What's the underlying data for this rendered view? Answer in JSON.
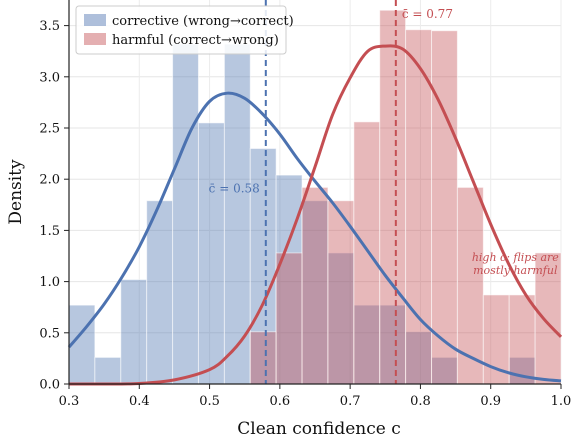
{
  "chart_data": {
    "type": "histogram",
    "title": "",
    "xlabel": "Clean confidence c",
    "ylabel": "Density",
    "xlim": [
      0.3,
      1.0
    ],
    "ylim": [
      0.0,
      3.75
    ],
    "xticks": [
      "0.3",
      "0.4",
      "0.5",
      "0.6",
      "0.7",
      "0.8",
      "0.9",
      "1.0"
    ],
    "yticks": [
      "0.0",
      "0.5",
      "1.0",
      "1.5",
      "2.0",
      "2.5",
      "3.0",
      "3.5"
    ],
    "grid": true,
    "legend_position": "top-left",
    "bin_edges": [
      0.3,
      0.3368,
      0.3737,
      0.4105,
      0.4474,
      0.4842,
      0.5211,
      0.5579,
      0.5947,
      0.6316,
      0.6684,
      0.7053,
      0.7421,
      0.7789,
      0.8158,
      0.8526,
      0.8895,
      0.9263,
      0.9632,
      1.0
    ],
    "series": [
      {
        "name": "corrective (wrong→correct)",
        "color": "#4c72b0",
        "bar_alpha": 0.4,
        "values": [
          0.77,
          0.26,
          1.02,
          1.79,
          3.32,
          2.55,
          3.32,
          2.3,
          2.04,
          1.79,
          1.28,
          0.77,
          0.77,
          0.51,
          0.26,
          0.0,
          0.0,
          0.26,
          0.0
        ],
        "kde_x": [
          0.3,
          0.325,
          0.35,
          0.375,
          0.4,
          0.425,
          0.45,
          0.475,
          0.5,
          0.525,
          0.55,
          0.575,
          0.6,
          0.625,
          0.65,
          0.675,
          0.7,
          0.725,
          0.75,
          0.775,
          0.8,
          0.825,
          0.85,
          0.875,
          0.9,
          0.925,
          0.95,
          0.975,
          1.0
        ],
        "kde_y": [
          0.36,
          0.56,
          0.78,
          1.04,
          1.34,
          1.7,
          2.1,
          2.5,
          2.76,
          2.84,
          2.79,
          2.64,
          2.44,
          2.2,
          1.98,
          1.77,
          1.54,
          1.3,
          1.06,
          0.84,
          0.63,
          0.47,
          0.34,
          0.25,
          0.17,
          0.11,
          0.07,
          0.045,
          0.03
        ],
        "mean": 0.58,
        "mean_label": "c̄ = 0.58"
      },
      {
        "name": "harmful (correct→wrong)",
        "color": "#c44e52",
        "bar_alpha": 0.4,
        "values": [
          0.0,
          0.0,
          0.0,
          0.0,
          0.0,
          0.0,
          0.0,
          0.51,
          1.28,
          1.92,
          1.79,
          2.56,
          3.65,
          3.46,
          3.45,
          1.92,
          0.87,
          0.87,
          1.28
        ],
        "kde_x": [
          0.3,
          0.35,
          0.4,
          0.45,
          0.5,
          0.525,
          0.55,
          0.575,
          0.6,
          0.625,
          0.65,
          0.675,
          0.7,
          0.725,
          0.75,
          0.775,
          0.8,
          0.825,
          0.85,
          0.875,
          0.9,
          0.925,
          0.95,
          0.975,
          1.0
        ],
        "kde_y": [
          0.0,
          0.0,
          0.005,
          0.04,
          0.14,
          0.27,
          0.47,
          0.77,
          1.17,
          1.62,
          2.12,
          2.63,
          2.99,
          3.25,
          3.3,
          3.27,
          3.08,
          2.78,
          2.4,
          1.98,
          1.56,
          1.18,
          0.87,
          0.64,
          0.46
        ],
        "mean": 0.765,
        "mean_label": "c̄ = 0.77"
      }
    ],
    "annotations": [
      {
        "text": "high c: flips are mostly harmful",
        "lines": [
          "high c: flips are",
          "mostly harmful"
        ],
        "x": 0.935,
        "y": 1.2,
        "color": "#c44e52"
      }
    ]
  }
}
